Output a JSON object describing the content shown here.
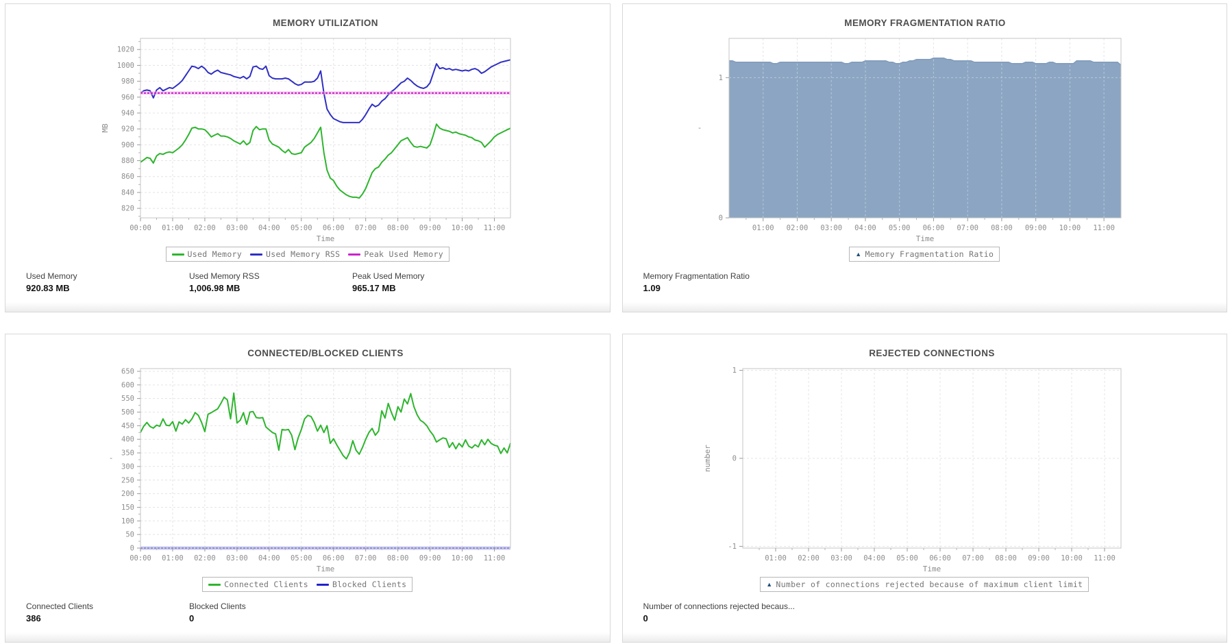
{
  "page": {
    "background": "#ffffff",
    "panel_border": "#d8d8d8"
  },
  "chart_data": [
    {
      "type": "line",
      "title": "MEMORY UTILIZATION",
      "xlabel": "Time",
      "ylabel": "MB",
      "ylabel_rotate": true,
      "xlim": [
        0,
        11.5
      ],
      "ylim": [
        808,
        1034
      ],
      "xticks": [
        0,
        1,
        2,
        3,
        4,
        5,
        6,
        7,
        8,
        9,
        10,
        11
      ],
      "xtick_labels": [
        "00:00",
        "01:00",
        "02:00",
        "03:00",
        "04:00",
        "05:00",
        "06:00",
        "07:00",
        "08:00",
        "09:00",
        "10:00",
        "11:00"
      ],
      "yticks": [
        820,
        840,
        860,
        880,
        900,
        920,
        940,
        960,
        980,
        1000,
        1020
      ],
      "ytick_labels": [
        "820",
        "840",
        "860",
        "880",
        "900",
        "920",
        "940",
        "960",
        "980",
        "1000",
        "1020"
      ],
      "yminor": [
        810,
        830,
        850,
        870,
        890,
        910,
        930,
        950,
        970,
        990,
        1010,
        1030
      ],
      "grid": true,
      "legend_position": "bottom",
      "series": [
        {
          "name": "Used Memory",
          "style": "line",
          "color": "#2db52d",
          "start": 0,
          "step": 0.1,
          "values": [
            878,
            881,
            884,
            883,
            877,
            886,
            889,
            888,
            890,
            891,
            890,
            893,
            896,
            900,
            906,
            913,
            921,
            922,
            920,
            920,
            919,
            915,
            910,
            912,
            914,
            911,
            911,
            910,
            908,
            905,
            903,
            901,
            905,
            900,
            903,
            918,
            923,
            919,
            920,
            920,
            906,
            901,
            899,
            897,
            893,
            890,
            894,
            889,
            888,
            889,
            890,
            897,
            900,
            903,
            908,
            915,
            922,
            890,
            868,
            858,
            855,
            848,
            843,
            840,
            837,
            835,
            834,
            834,
            833,
            838,
            845,
            855,
            865,
            870,
            872,
            878,
            882,
            887,
            890,
            895,
            900,
            905,
            907,
            909,
            903,
            898,
            897,
            898,
            897,
            896,
            900,
            912,
            926,
            921,
            919,
            918,
            917,
            915,
            916,
            914,
            913,
            912,
            910,
            909,
            906,
            905,
            903,
            897,
            901,
            905,
            910,
            913,
            915,
            917,
            919,
            920.83
          ]
        },
        {
          "name": "Used Memory RSS",
          "style": "line",
          "color": "#2f2fc4",
          "start": 0,
          "step": 0.1,
          "values": [
            965,
            968,
            969,
            968,
            959,
            969,
            972,
            968,
            970,
            972,
            971,
            974,
            977,
            981,
            987,
            993,
            999,
            998,
            996,
            999,
            996,
            991,
            989,
            992,
            994,
            991,
            990,
            989,
            988,
            986,
            985,
            984,
            986,
            983,
            986,
            998,
            999,
            996,
            995,
            999,
            987,
            984,
            983,
            983,
            983,
            984,
            983,
            980,
            977,
            975,
            976,
            979,
            979,
            979,
            980,
            984,
            993,
            965,
            945,
            938,
            933,
            931,
            929,
            928,
            928,
            928,
            928,
            928,
            928,
            932,
            938,
            945,
            951,
            948,
            950,
            955,
            958,
            963,
            967,
            970,
            974,
            978,
            980,
            984,
            981,
            977,
            974,
            972,
            971,
            973,
            978,
            990,
            1002,
            996,
            997,
            995,
            996,
            994,
            995,
            994,
            993,
            994,
            993,
            995,
            996,
            994,
            990,
            992,
            995,
            998,
            1000,
            1002,
            1004,
            1005,
            1006,
            1006.98
          ]
        },
        {
          "name": "Peak Used Memory",
          "style": "halo",
          "color": "#c014c0",
          "halo": "#f0a3e8",
          "start": 0,
          "step": 11.5,
          "values": [
            965.17,
            965.17
          ]
        }
      ],
      "legend": [
        {
          "label": "Used Memory",
          "icon": "line",
          "color": "#2db52d"
        },
        {
          "label": "Used Memory RSS",
          "icon": "line",
          "color": "#2f2fc4"
        },
        {
          "label": "Peak Used Memory",
          "icon": "line",
          "color": "#cc22cc"
        }
      ],
      "stats": [
        {
          "label": "Used Memory",
          "value": "920.83 MB"
        },
        {
          "label": "Used Memory RSS",
          "value": "1,006.98 MB"
        },
        {
          "label": "Peak Used Memory",
          "value": "965.17 MB"
        }
      ]
    },
    {
      "type": "area",
      "title": "MEMORY FRAGMENTATION RATIO",
      "xlabel": "Time",
      "ylabel": "-",
      "ylabel_rotate": false,
      "xlim": [
        0,
        11.5
      ],
      "ylim": [
        0,
        1.28
      ],
      "xticks": [
        1,
        2,
        3,
        4,
        5,
        6,
        7,
        8,
        9,
        10,
        11
      ],
      "xtick_labels": [
        "01:00",
        "02:00",
        "03:00",
        "04:00",
        "05:00",
        "06:00",
        "07:00",
        "08:00",
        "09:00",
        "10:00",
        "11:00"
      ],
      "yticks": [
        0,
        1
      ],
      "ytick_labels": [
        "0",
        "1"
      ],
      "yminor": [],
      "grid": true,
      "legend_position": "bottom",
      "series": [
        {
          "name": "Memory Fragmentation Ratio",
          "style": "area",
          "color": "#8ca5c2",
          "stroke": "#7f9bbc",
          "start": 0,
          "step": 0.1,
          "values": [
            1.12,
            1.12,
            1.11,
            1.11,
            1.11,
            1.11,
            1.11,
            1.11,
            1.11,
            1.11,
            1.11,
            1.11,
            1.11,
            1.1,
            1.1,
            1.11,
            1.11,
            1.11,
            1.11,
            1.11,
            1.11,
            1.11,
            1.11,
            1.11,
            1.11,
            1.11,
            1.11,
            1.11,
            1.11,
            1.11,
            1.11,
            1.11,
            1.11,
            1.11,
            1.1,
            1.1,
            1.11,
            1.11,
            1.11,
            1.11,
            1.12,
            1.12,
            1.12,
            1.12,
            1.12,
            1.12,
            1.12,
            1.11,
            1.11,
            1.1,
            1.1,
            1.11,
            1.11,
            1.12,
            1.12,
            1.13,
            1.13,
            1.13,
            1.13,
            1.13,
            1.14,
            1.14,
            1.14,
            1.14,
            1.13,
            1.13,
            1.12,
            1.12,
            1.12,
            1.12,
            1.12,
            1.12,
            1.11,
            1.11,
            1.11,
            1.11,
            1.11,
            1.11,
            1.11,
            1.11,
            1.11,
            1.11,
            1.11,
            1.1,
            1.1,
            1.1,
            1.1,
            1.11,
            1.11,
            1.11,
            1.1,
            1.1,
            1.1,
            1.1,
            1.11,
            1.11,
            1.1,
            1.1,
            1.1,
            1.1,
            1.1,
            1.1,
            1.12,
            1.12,
            1.12,
            1.12,
            1.12,
            1.11,
            1.11,
            1.11,
            1.11,
            1.11,
            1.11,
            1.11,
            1.11,
            1.09
          ]
        }
      ],
      "legend": [
        {
          "label": "Memory Fragmentation Ratio",
          "icon": "area",
          "color": "#1f4e79"
        }
      ],
      "stats": [
        {
          "label": "Memory Fragmentation Ratio",
          "value": "1.09"
        }
      ]
    },
    {
      "type": "line",
      "title": "CONNECTED/BLOCKED CLIENTS",
      "xlabel": "Time",
      "ylabel": "-",
      "ylabel_rotate": false,
      "xlim": [
        0,
        11.5
      ],
      "ylim": [
        0,
        660
      ],
      "xticks": [
        0,
        1,
        2,
        3,
        4,
        5,
        6,
        7,
        8,
        9,
        10,
        11
      ],
      "xtick_labels": [
        "00:00",
        "01:00",
        "02:00",
        "03:00",
        "04:00",
        "05:00",
        "06:00",
        "07:00",
        "08:00",
        "09:00",
        "10:00",
        "11:00"
      ],
      "yticks": [
        0,
        50,
        100,
        150,
        200,
        250,
        300,
        350,
        400,
        450,
        500,
        550,
        600,
        650
      ],
      "ytick_labels": [
        "0",
        "50",
        "100",
        "150",
        "200",
        "250",
        "300",
        "350",
        "400",
        "450",
        "500",
        "550",
        "600",
        "650"
      ],
      "yminor": [
        25,
        75,
        125,
        175,
        225,
        275,
        325,
        375,
        425,
        475,
        525,
        575,
        625
      ],
      "grid": true,
      "legend_position": "bottom",
      "series": [
        {
          "name": "Connected Clients",
          "style": "line",
          "color": "#2db52d",
          "start": 0,
          "step": 0.1,
          "values": [
            425,
            448,
            462,
            447,
            441,
            452,
            448,
            475,
            452,
            450,
            465,
            430,
            464,
            456,
            472,
            460,
            475,
            498,
            488,
            462,
            428,
            492,
            498,
            505,
            512,
            532,
            555,
            545,
            475,
            570,
            460,
            470,
            498,
            455,
            500,
            502,
            480,
            478,
            480,
            445,
            435,
            425,
            420,
            360,
            436,
            434,
            436,
            415,
            362,
            405,
            436,
            475,
            488,
            484,
            462,
            430,
            452,
            425,
            450,
            385,
            402,
            380,
            360,
            340,
            328,
            352,
            395,
            360,
            345,
            370,
            400,
            425,
            440,
            415,
            430,
            505,
            478,
            532,
            498,
            470,
            520,
            500,
            548,
            530,
            568,
            520,
            490,
            470,
            462,
            450,
            430,
            415,
            390,
            398,
            405,
            402,
            370,
            388,
            365,
            385,
            372,
            398,
            375,
            368,
            380,
            372,
            398,
            380,
            400,
            385,
            378,
            375,
            348,
            368,
            350,
            386
          ]
        },
        {
          "name": "Blocked Clients",
          "style": "halo",
          "color": "#3333cc",
          "halo": "#9f9fe8",
          "start": 0,
          "step": 11.5,
          "values": [
            0,
            0
          ]
        }
      ],
      "legend": [
        {
          "label": "Connected Clients",
          "icon": "line",
          "color": "#2db52d"
        },
        {
          "label": "Blocked Clients",
          "icon": "line",
          "color": "#2222cc"
        }
      ],
      "stats": [
        {
          "label": "Connected Clients",
          "value": "386"
        },
        {
          "label": "Blocked Clients",
          "value": "0"
        }
      ]
    },
    {
      "type": "line",
      "title": "REJECTED CONNECTIONS",
      "xlabel": "Time",
      "ylabel": "number",
      "ylabel_rotate": true,
      "xlim": [
        0,
        11.5
      ],
      "ylim": [
        -1.02,
        1.02
      ],
      "xticks": [
        1,
        2,
        3,
        4,
        5,
        6,
        7,
        8,
        9,
        10,
        11
      ],
      "xtick_labels": [
        "01:00",
        "02:00",
        "03:00",
        "04:00",
        "05:00",
        "06:00",
        "07:00",
        "08:00",
        "09:00",
        "10:00",
        "11:00"
      ],
      "yticks": [
        -1,
        0,
        1
      ],
      "ytick_labels": [
        "-1",
        "0",
        "1"
      ],
      "yminor": [],
      "grid": true,
      "legend_position": "bottom",
      "series": [],
      "legend": [
        {
          "label": "Number of connections rejected because of maximum client limit",
          "icon": "area",
          "color": "#1f4e79"
        }
      ],
      "stats": [
        {
          "label": "Number of connections rejected becaus...",
          "value": "0"
        }
      ]
    }
  ]
}
